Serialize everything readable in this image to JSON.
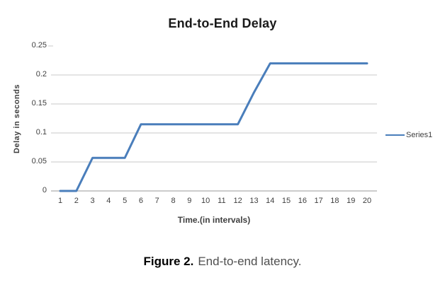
{
  "figure_caption": {
    "label": "Figure 2.",
    "text": "End-to-end latency."
  },
  "chart_data": {
    "type": "line",
    "title": "End-to-End Delay",
    "xlabel": "Time.(in intervals)",
    "ylabel": "Delay in seconds",
    "categories": [
      "1",
      "2",
      "3",
      "4",
      "5",
      "6",
      "7",
      "8",
      "9",
      "10",
      "11",
      "12",
      "13",
      "14",
      "15",
      "16",
      "17",
      "18",
      "19",
      "20"
    ],
    "series": [
      {
        "name": "Series1",
        "color": "#4a7ebb",
        "values": [
          0,
          0,
          0.057,
          0.057,
          0.057,
          0.115,
          0.115,
          0.115,
          0.115,
          0.115,
          0.115,
          0.115,
          0.17,
          0.22,
          0.22,
          0.22,
          0.22,
          0.22,
          0.22,
          0.22
        ]
      }
    ],
    "ylim": [
      0,
      0.25
    ],
    "y_ticks": [
      0,
      0.05,
      0.1,
      0.15,
      0.2,
      0.25
    ],
    "y_tick_labels": [
      "0",
      "0.05",
      "0.1",
      "0.15",
      "0.2",
      "0.25"
    ],
    "grid": "horizontal",
    "legend_position": "right",
    "colors": {
      "line": "#4a7ebb",
      "gridline": "#c9c9c9",
      "axis": "#999999",
      "tick_text": "#404040",
      "title_text": "#1a1a1a",
      "caption_text": "#4f4f4f"
    }
  }
}
